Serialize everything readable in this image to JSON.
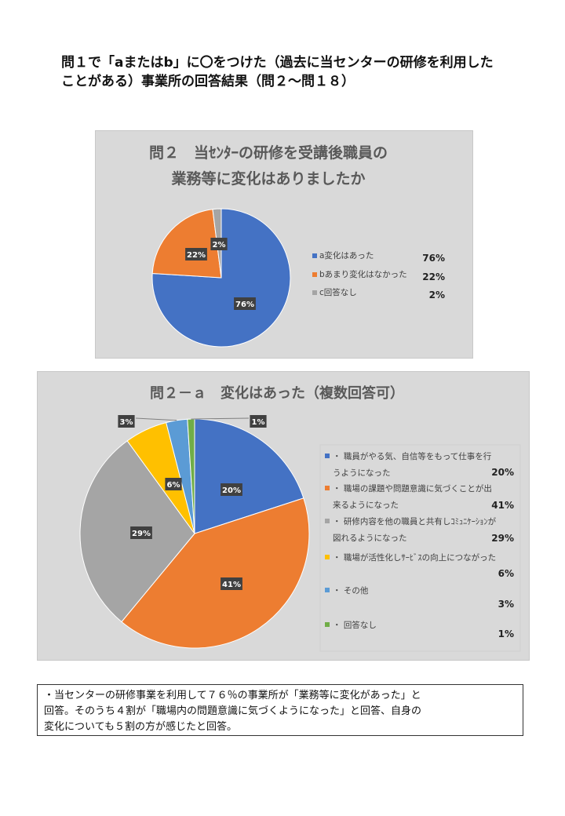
{
  "heading": {
    "line1": "問１で「aまたはb」に〇をつけた（過去に当センターの研修を利用した",
    "line2": "ことがある）事業所の回答結果（問２～問１８）"
  },
  "chart_data": [
    {
      "type": "pie",
      "title_lines": [
        "問２　当ｾﾝﾀｰの研修を受講後職員の",
        "業務等に変化はありましたか"
      ],
      "categories": [
        "a変化はあった",
        "bあまり変化はなかった",
        "c回答なし"
      ],
      "values": [
        76,
        22,
        2
      ],
      "labels": [
        "76%",
        "22%",
        "2%"
      ],
      "colors": [
        "#4472c4",
        "#ed7d31",
        "#a5a5a5"
      ],
      "legend_position": "right"
    },
    {
      "type": "pie",
      "title_lines": [
        "問２－ａ　変化はあった（複数回答可）"
      ],
      "categories": [
        "・職員がやる気、自信等をもって仕事を行うようになった",
        "・職場の課題や問題意識に気づくことが出来るようになった",
        "・研修内容を他の職員と共有しｺﾐｭﾆｹｰｼｮﾝが図れるようになった",
        "・職場が活性化しｻｰﾋﾞｽの向上につながった",
        "・その他",
        "・回答なし"
      ],
      "legend_lines": [
        [
          "・ 職員がやる気、自信等をもって仕事を行",
          "うようになった"
        ],
        [
          "・ 職場の課題や問題意識に気づくことが出",
          "来るようになった"
        ],
        [
          "・ 研修内容を他の職員と共有しｺﾐｭﾆｹｰｼｮﾝが",
          "図れるようになった"
        ],
        [
          "・ 職場が活性化しｻｰﾋﾞｽの向上につながった"
        ],
        [
          "・ その他"
        ],
        [
          "・ 回答なし"
        ]
      ],
      "values": [
        20,
        41,
        29,
        6,
        3,
        1
      ],
      "labels": [
        "20%",
        "41%",
        "29%",
        "6%",
        "3%",
        "1%"
      ],
      "colors": [
        "#4472c4",
        "#ed7d31",
        "#a5a5a5",
        "#ffc000",
        "#5b9bd5",
        "#70ad47"
      ],
      "legend_position": "right"
    }
  ],
  "summary": {
    "line1": "・当センターの研修事業を利用して７６％の事業所が「業務等に変化があった」と",
    "line2": "回答。そのうち４割が「職場内の問題意識に気づくようになった」と回答、自身の",
    "line3": "変化についても５割の方が感じたと回答。"
  }
}
